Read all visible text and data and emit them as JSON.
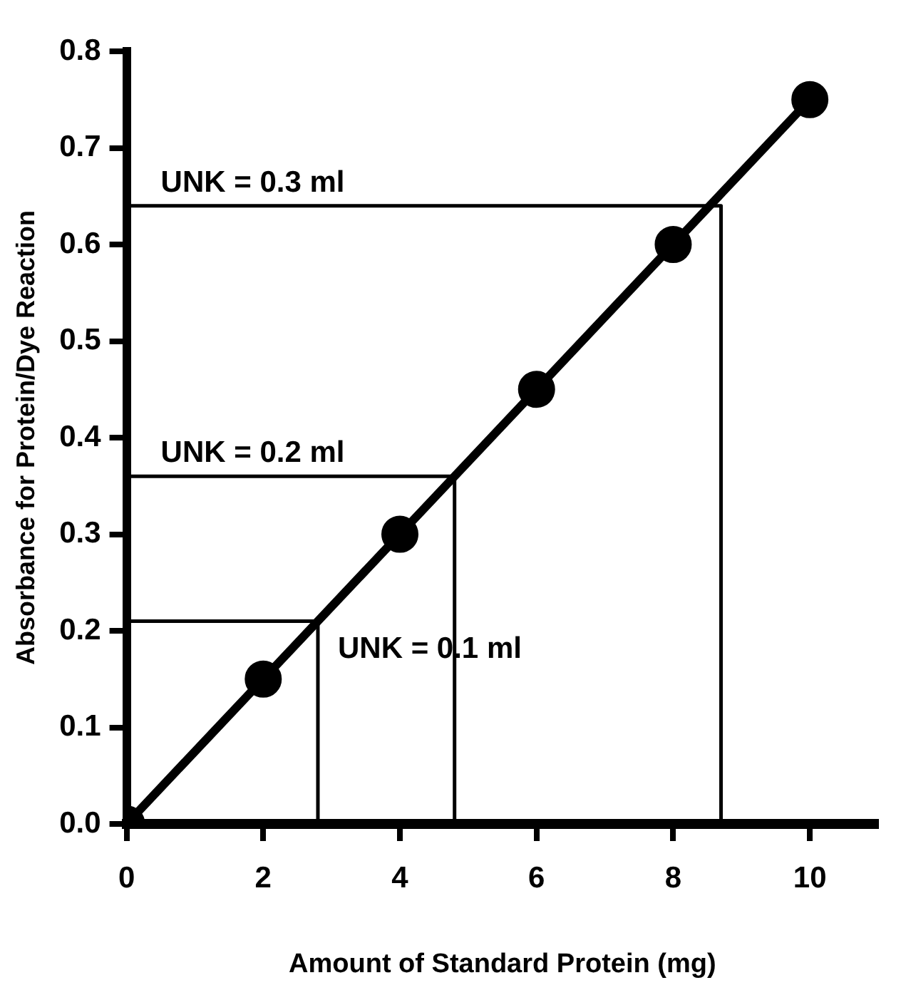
{
  "chart_data": {
    "type": "line",
    "xlabel": "Amount of Standard Protein (mg)",
    "ylabel": "Absorbance for Protein/Dye Reaction",
    "series": [
      {
        "type": "line",
        "color": "#000000",
        "marker": "circle",
        "x": [
          0,
          2,
          4,
          6,
          8,
          10
        ],
        "values": [
          0,
          0.15,
          0.3,
          0.45,
          0.6,
          0.75
        ]
      },
      {
        "type": "line",
        "color": "#000000",
        "marker": "none",
        "x": [
          0,
          2.8,
          2.8
        ],
        "values": [
          0.21,
          0.21,
          0
        ]
      },
      {
        "type": "line",
        "color": "#000000",
        "marker": "none",
        "x": [
          0,
          4.8,
          4.8
        ],
        "values": [
          0.36,
          0.36,
          0
        ]
      },
      {
        "type": "line",
        "color": "#000000",
        "marker": "none",
        "x": [
          0,
          8.7,
          8.7
        ],
        "values": [
          0.64,
          0.64,
          0
        ]
      }
    ],
    "annotations": [
      "UNK = 0.1 ml",
      "UNK = 0.2 ml",
      "UNK = 0.3 ml"
    ],
    "xlim": [
      0,
      11
    ],
    "xticks": [
      0,
      2,
      4,
      6,
      8,
      10
    ],
    "ylim": [
      0,
      0.8
    ],
    "yticks": [
      {
        "value": 0,
        "label": "0.0"
      },
      0.1,
      0.2,
      0.3,
      0.4,
      0.5,
      0.6,
      0.7,
      0.8
    ],
    "grid": false,
    "legend": false
  }
}
